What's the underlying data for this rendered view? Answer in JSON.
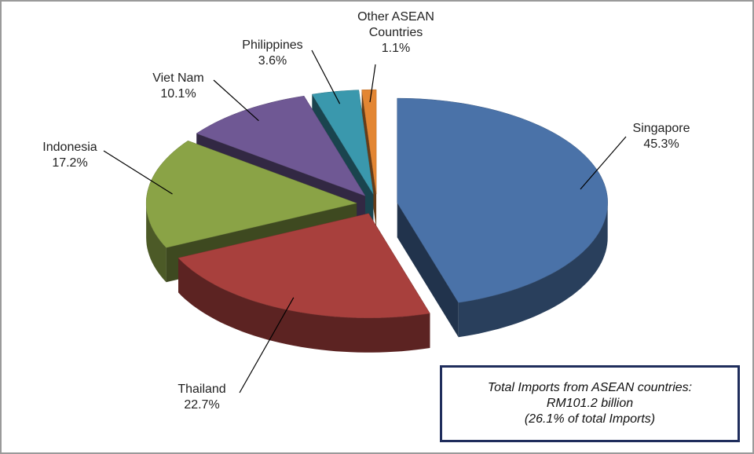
{
  "chart_data": {
    "type": "pie",
    "categories": [
      "Singapore",
      "Thailand",
      "Indonesia",
      "Viet Nam",
      "Philippines",
      "Other ASEAN Countries"
    ],
    "values": [
      45.3,
      22.7,
      17.2,
      10.1,
      3.6,
      1.1
    ],
    "value_labels": [
      "45.3%",
      "22.7%",
      "17.2%",
      "10.1%",
      "3.6%",
      "1.1%"
    ],
    "colors": [
      "#4a72a8",
      "#a8403d",
      "#8aa346",
      "#6f5894",
      "#3a98ad",
      "#e38633"
    ],
    "annotation": [
      "Total Imports from ASEAN countries:",
      "RM101.2 billion",
      "(26.1% of total Imports)"
    ]
  }
}
